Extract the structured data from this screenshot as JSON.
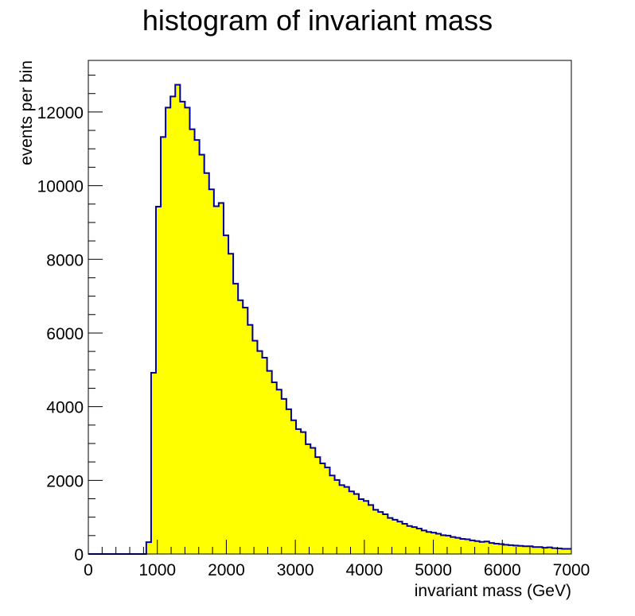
{
  "chart_data": {
    "type": "bar",
    "title": "histogram of invariant mass",
    "xlabel": "invariant mass (GeV)",
    "ylabel": "events per bin",
    "xlim": [
      0,
      7000
    ],
    "ylim": [
      0,
      13400
    ],
    "bin_width": 70,
    "x_ticks": [
      "0",
      "1000",
      "2000",
      "3000",
      "4000",
      "5000",
      "6000",
      "7000"
    ],
    "y_ticks": [
      "0",
      "2000",
      "4000",
      "6000",
      "8000",
      "10000",
      "12000"
    ],
    "grid": false,
    "fill_color": "#ffff00",
    "line_color": "#000099",
    "values": [
      0,
      0,
      0,
      0,
      0,
      0,
      0,
      0,
      0,
      0,
      0,
      0,
      320,
      4920,
      9430,
      11320,
      12120,
      12420,
      12740,
      12280,
      12120,
      11530,
      11240,
      10840,
      10340,
      9900,
      9440,
      9530,
      8650,
      8150,
      7340,
      6890,
      6690,
      6220,
      5790,
      5510,
      5330,
      4970,
      4660,
      4460,
      4210,
      3930,
      3630,
      3390,
      3310,
      2980,
      2880,
      2630,
      2460,
      2350,
      2130,
      2010,
      1870,
      1820,
      1700,
      1630,
      1490,
      1440,
      1330,
      1200,
      1140,
      1080,
      980,
      930,
      880,
      820,
      760,
      730,
      690,
      640,
      600,
      580,
      550,
      510,
      500,
      460,
      440,
      410,
      400,
      370,
      350,
      330,
      340,
      300,
      280,
      270,
      250,
      240,
      230,
      220,
      210,
      210,
      190,
      190,
      170,
      180,
      160,
      150,
      140,
      140
    ]
  }
}
